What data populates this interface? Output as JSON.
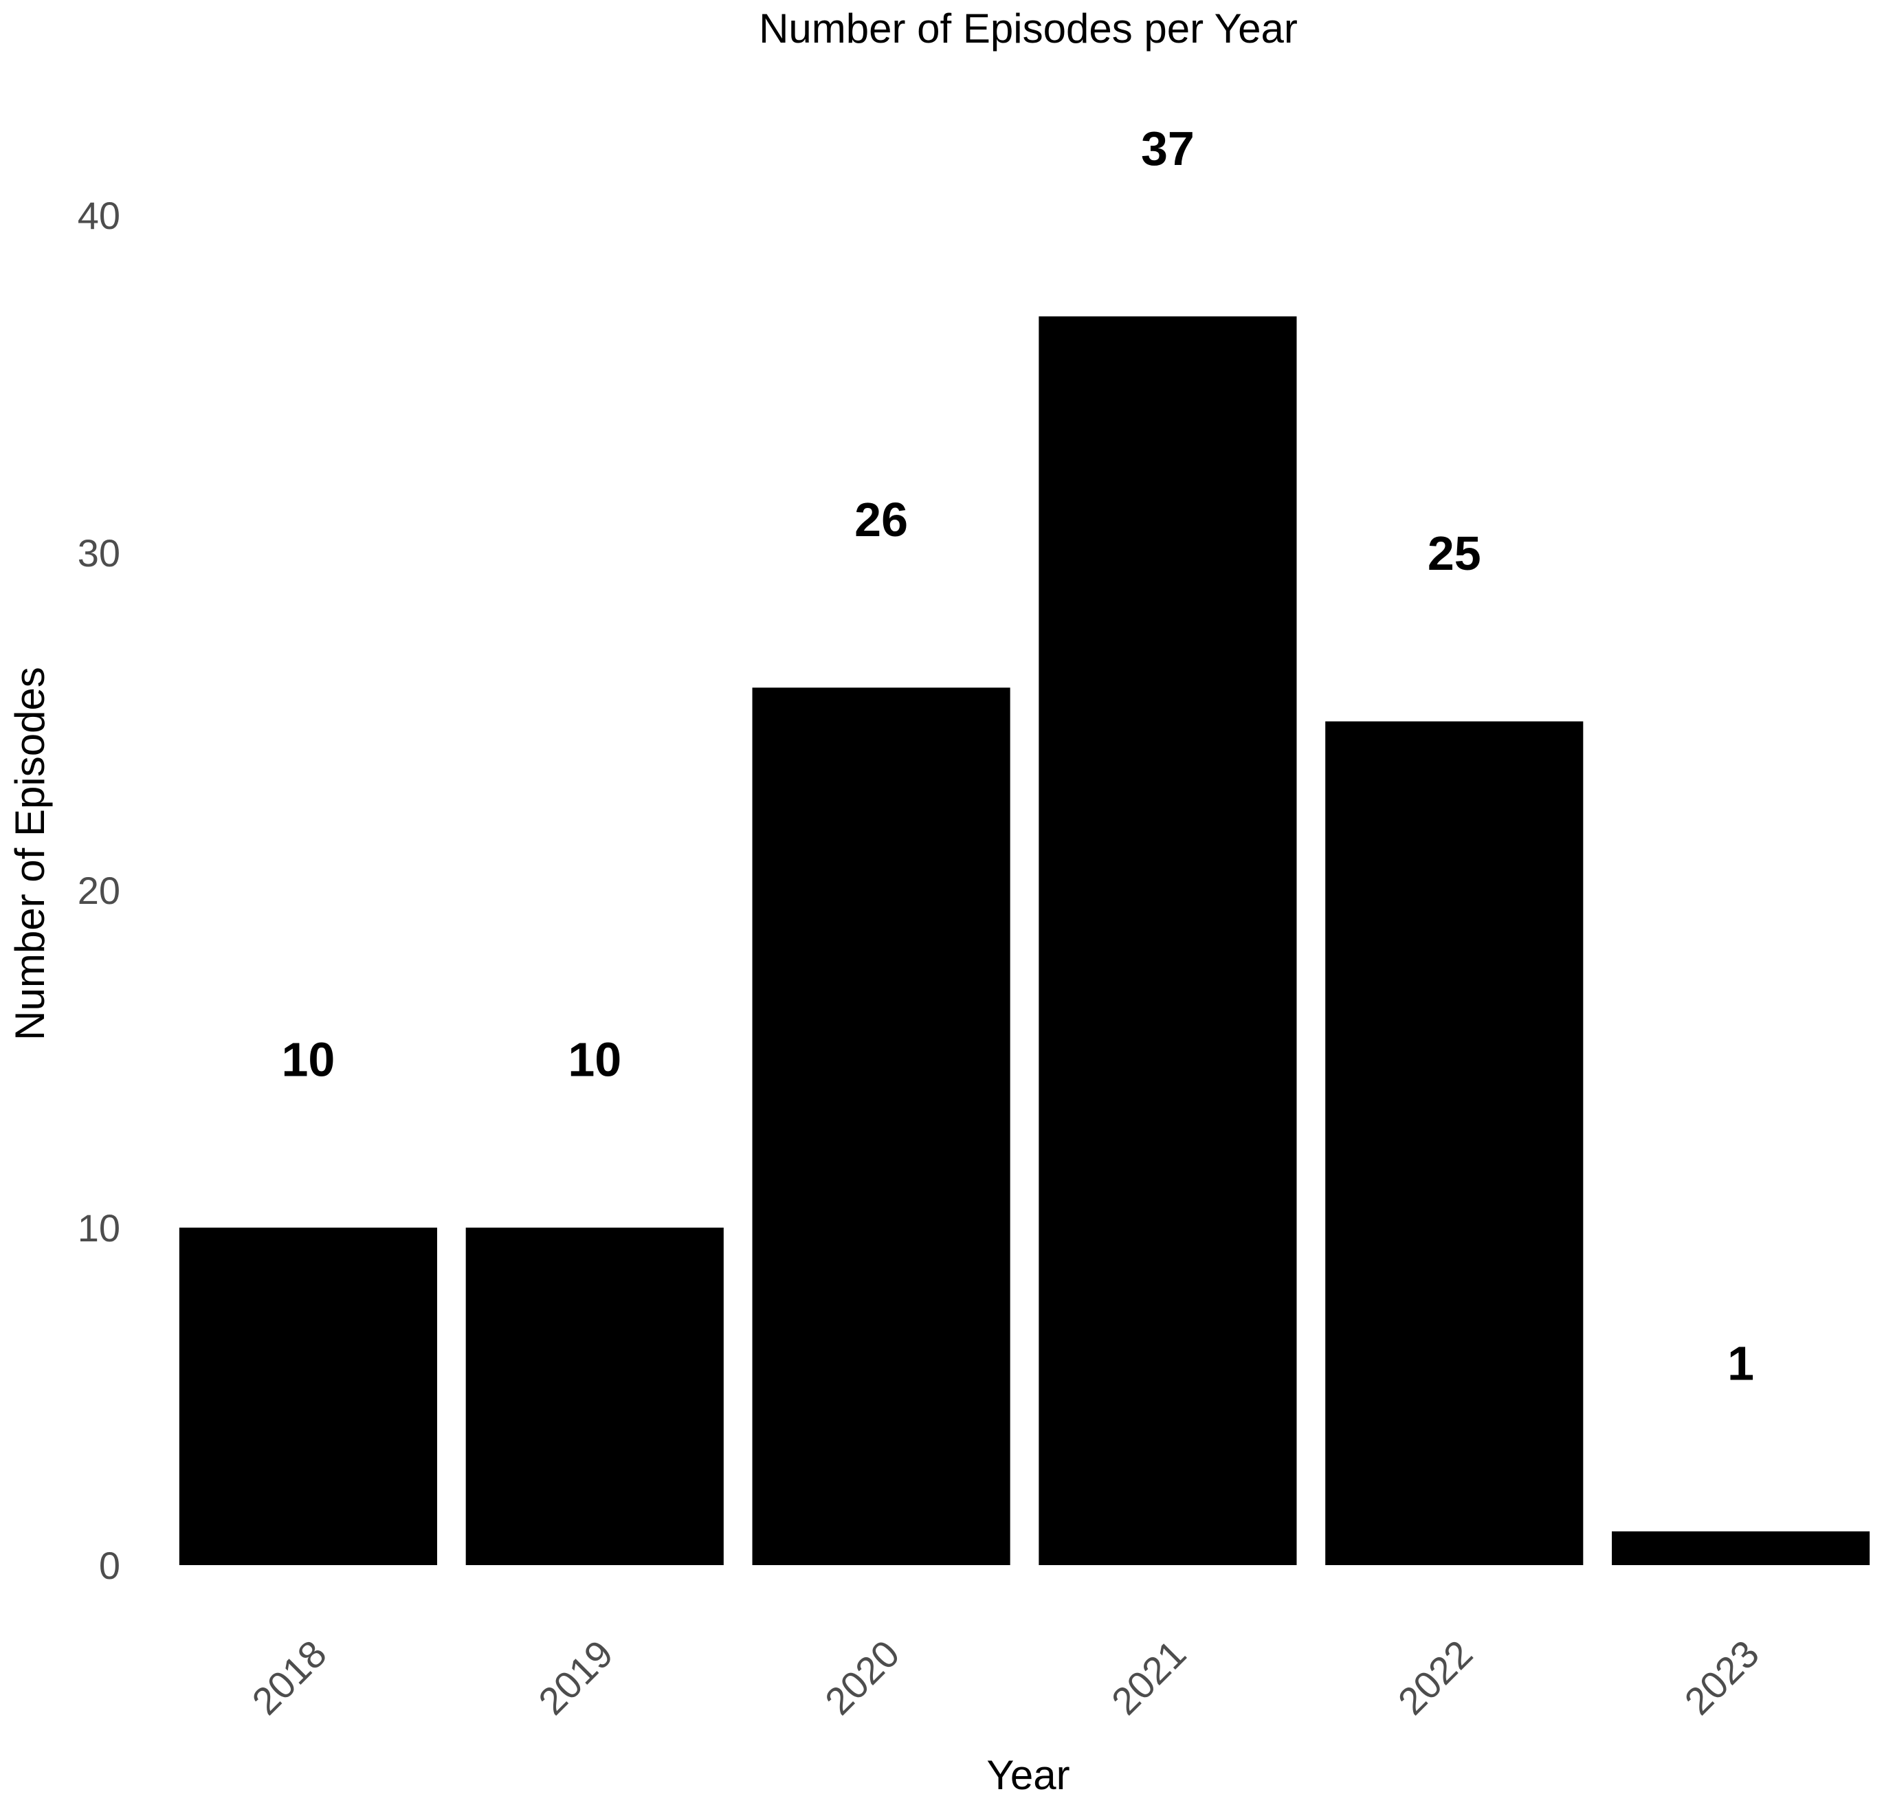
{
  "chart_data": {
    "type": "bar",
    "title": "Number of Episodes per Year",
    "xlabel": "Year",
    "ylabel": "Number of Episodes",
    "categories": [
      "2018",
      "2019",
      "2020",
      "2021",
      "2022",
      "2023"
    ],
    "values": [
      10,
      10,
      26,
      37,
      25,
      1
    ],
    "data_labels": [
      "10",
      "10",
      "26",
      "37",
      "25",
      "1"
    ],
    "yticks": [
      0,
      10,
      20,
      30,
      40
    ],
    "ylim": [
      0,
      40
    ],
    "grid": false,
    "legend": "none",
    "bar_color": "#000000",
    "tick_label_color": "#4d4d4d"
  }
}
